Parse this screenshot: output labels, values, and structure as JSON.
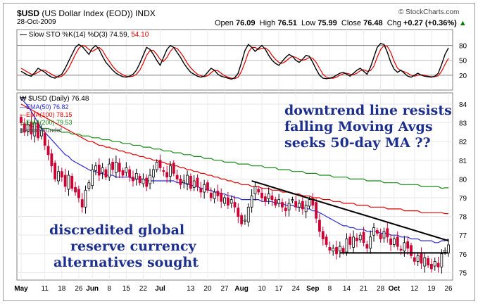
{
  "header": {
    "symbol": "$USD",
    "name": "(US Dollar Index (EOD))",
    "exchange": "INDX",
    "date": "28-Oct-2009",
    "source": "© StockCharts.com",
    "open_label": "Open",
    "open": "76.09",
    "high_label": "High",
    "high": "76.51",
    "low_label": "Low",
    "low": "75.99",
    "close_label": "Close",
    "close": "76.48",
    "chg_label": "Chg",
    "chg": "+0.27 (+0.36%)",
    "chg_arrow": "▲"
  },
  "stoch_panel": {
    "label": "Slow STO %K(14) %D(3)",
    "k_value": "74.59",
    "d_value": "54.10",
    "k_color": "#000000",
    "d_color": "#e00000",
    "ticks": [
      "80",
      "50",
      "20"
    ]
  },
  "price_panel": {
    "label": "$USD (Daily) 76.48",
    "legend": [
      {
        "text": "EMA(50) 76.82",
        "color": "#2b2bd0"
      },
      {
        "text": "EMA(100) 78.15",
        "color": "#e00000"
      },
      {
        "text": "EMA(200) 79.53",
        "color": "#1a8a1a"
      },
      {
        "text": "Volume undef",
        "color": "#555555"
      }
    ]
  },
  "annotations": {
    "top_right": [
      "downtrend line resists",
      "falling Moving Avgs",
      "seeks 50-day MA ??"
    ],
    "bottom_left": [
      "discredited global",
      "reserve currency",
      "alternatives sought"
    ]
  },
  "chart_data": {
    "type": "candlestick",
    "y_ticks": [
      75,
      76,
      77,
      78,
      79,
      80,
      81,
      82,
      83,
      84
    ],
    "ylim": [
      74.6,
      84.6
    ],
    "x_tick_labels": [
      "May",
      "11",
      "18",
      "26",
      "Jun",
      "8",
      "15",
      "22",
      "Jul",
      "13",
      "20",
      "27",
      "Aug",
      "10",
      "17",
      "24",
      "Sep",
      "8",
      "14",
      "21",
      "28",
      "Oct",
      "12",
      "19",
      "26"
    ],
    "x_tick_indices": [
      0,
      7,
      12,
      17,
      21,
      26,
      31,
      36,
      41,
      50,
      55,
      60,
      65,
      71,
      76,
      81,
      86,
      91,
      96,
      101,
      106,
      110,
      116,
      121,
      126
    ],
    "close_series": [
      83.0,
      82.5,
      82.9,
      82.4,
      83.0,
      82.2,
      82.6,
      81.8,
      81.3,
      80.7,
      80.0,
      80.4,
      80.1,
      79.6,
      80.2,
      79.5,
      79.3,
      79.0,
      78.5,
      79.4,
      79.8,
      80.5,
      80.7,
      80.2,
      80.6,
      80.1,
      80.8,
      80.5,
      80.9,
      80.4,
      80.2,
      80.6,
      80.1,
      79.9,
      80.3,
      79.8,
      80.0,
      79.6,
      80.2,
      80.5,
      80.9,
      80.6,
      80.4,
      80.1,
      80.7,
      80.3,
      80.0,
      79.7,
      79.9,
      80.2,
      79.5,
      79.9,
      79.6,
      79.3,
      79.7,
      79.4,
      79.0,
      79.3,
      79.1,
      78.8,
      79.0,
      78.6,
      78.9,
      78.5,
      78.0,
      77.6,
      77.8,
      78.5,
      79.1,
      79.6,
      79.3,
      79.0,
      78.8,
      79.2,
      78.9,
      78.6,
      78.9,
      78.5,
      78.3,
      78.7,
      78.9,
      78.5,
      78.7,
      78.4,
      78.6,
      78.9,
      78.6,
      77.9,
      77.2,
      76.8,
      76.5,
      76.2,
      76.3,
      76.0,
      76.4,
      76.1,
      76.8,
      76.5,
      76.9,
      76.7,
      77.0,
      76.6,
      76.3,
      76.9,
      77.4,
      77.1,
      76.8,
      77.2,
      76.9,
      76.5,
      76.8,
      76.4,
      76.2,
      76.6,
      76.3,
      75.9,
      75.6,
      75.9,
      75.5,
      75.8,
      75.4,
      75.2,
      75.6,
      75.3,
      76.0,
      76.2,
      76.48
    ],
    "ema50": [
      84.3,
      84.1,
      83.9,
      83.6,
      83.3,
      83.0,
      82.7,
      82.5,
      82.3,
      82.1,
      81.9,
      81.7,
      81.5,
      81.3,
      81.2,
      81.0,
      80.9,
      80.8,
      80.7,
      80.6,
      80.5,
      80.4,
      80.4,
      80.3,
      80.3,
      80.2,
      80.2,
      80.2,
      80.1,
      80.1,
      80.1,
      80.1,
      80.1,
      80.0,
      80.0,
      80.0,
      80.0,
      79.9,
      79.9,
      79.9,
      79.9,
      79.9,
      79.9,
      79.9,
      79.9,
      79.9,
      79.8,
      79.8,
      79.8,
      79.7,
      79.7,
      79.6,
      79.6,
      79.5,
      79.5,
      79.4,
      79.4,
      79.3,
      79.3,
      79.2,
      79.2,
      79.1,
      79.1,
      79.0,
      79.0,
      78.9,
      78.9,
      78.9,
      78.9,
      78.9,
      78.9,
      78.8,
      78.8,
      78.8,
      78.8,
      78.7,
      78.7,
      78.7,
      78.6,
      78.6,
      78.6,
      78.5,
      78.5,
      78.5,
      78.4,
      78.4,
      78.3,
      78.3,
      78.2,
      78.1,
      78.0,
      77.9,
      77.8,
      77.7,
      77.6,
      77.5,
      77.5,
      77.4,
      77.4,
      77.3,
      77.3,
      77.3,
      77.2,
      77.2,
      77.2,
      77.2,
      77.1,
      77.1,
      77.1,
      77.0,
      77.0,
      77.0,
      76.9,
      76.9,
      76.9,
      76.8,
      76.8,
      76.8,
      76.7,
      76.7,
      76.7,
      76.7,
      76.6,
      76.6,
      76.7,
      76.7,
      76.8
    ],
    "ema100": [
      84.0,
      83.9,
      83.8,
      83.7,
      83.6,
      83.5,
      83.4,
      83.3,
      83.2,
      83.1,
      83.0,
      82.9,
      82.8,
      82.7,
      82.6,
      82.5,
      82.4,
      82.3,
      82.2,
      82.1,
      82.0,
      82.0,
      81.9,
      81.8,
      81.8,
      81.7,
      81.7,
      81.6,
      81.6,
      81.5,
      81.5,
      81.4,
      81.4,
      81.3,
      81.3,
      81.2,
      81.2,
      81.1,
      81.1,
      81.0,
      81.0,
      80.9,
      80.9,
      80.8,
      80.8,
      80.7,
      80.7,
      80.6,
      80.6,
      80.5,
      80.5,
      80.4,
      80.4,
      80.3,
      80.3,
      80.2,
      80.2,
      80.1,
      80.1,
      80.0,
      80.0,
      79.9,
      79.9,
      79.8,
      79.8,
      79.7,
      79.7,
      79.7,
      79.6,
      79.6,
      79.6,
      79.5,
      79.5,
      79.5,
      79.4,
      79.4,
      79.4,
      79.3,
      79.3,
      79.3,
      79.2,
      79.2,
      79.2,
      79.1,
      79.1,
      79.1,
      79.0,
      79.0,
      79.0,
      78.9,
      78.9,
      78.9,
      78.8,
      78.8,
      78.8,
      78.7,
      78.7,
      78.7,
      78.7,
      78.6,
      78.6,
      78.6,
      78.6,
      78.5,
      78.5,
      78.5,
      78.5,
      78.5,
      78.4,
      78.4,
      78.4,
      78.4,
      78.4,
      78.3,
      78.3,
      78.3,
      78.3,
      78.3,
      78.2,
      78.2,
      78.2,
      78.2,
      78.2,
      78.2,
      78.2,
      78.15,
      78.15
    ],
    "ema200": [
      82.9,
      82.9,
      82.9,
      82.8,
      82.8,
      82.8,
      82.7,
      82.7,
      82.7,
      82.6,
      82.6,
      82.6,
      82.5,
      82.5,
      82.5,
      82.4,
      82.4,
      82.4,
      82.3,
      82.3,
      82.3,
      82.2,
      82.2,
      82.2,
      82.1,
      82.1,
      82.1,
      82.0,
      82.0,
      82.0,
      81.9,
      81.9,
      81.9,
      81.8,
      81.8,
      81.8,
      81.7,
      81.7,
      81.7,
      81.6,
      81.6,
      81.6,
      81.5,
      81.5,
      81.5,
      81.4,
      81.4,
      81.4,
      81.3,
      81.3,
      81.3,
      81.2,
      81.2,
      81.2,
      81.1,
      81.1,
      81.1,
      81.0,
      81.0,
      81.0,
      80.9,
      80.9,
      80.9,
      80.9,
      80.8,
      80.8,
      80.8,
      80.8,
      80.7,
      80.7,
      80.7,
      80.7,
      80.6,
      80.6,
      80.6,
      80.6,
      80.5,
      80.5,
      80.5,
      80.5,
      80.4,
      80.4,
      80.4,
      80.4,
      80.3,
      80.3,
      80.3,
      80.3,
      80.2,
      80.2,
      80.2,
      80.2,
      80.1,
      80.1,
      80.1,
      80.1,
      80.1,
      80.0,
      80.0,
      80.0,
      80.0,
      80.0,
      79.9,
      79.9,
      79.9,
      79.9,
      79.9,
      79.8,
      79.8,
      79.8,
      79.8,
      79.8,
      79.7,
      79.7,
      79.7,
      79.7,
      79.7,
      79.7,
      79.6,
      79.6,
      79.6,
      79.6,
      79.6,
      79.6,
      79.5,
      79.53,
      79.53
    ],
    "stoch_k": [
      28,
      24,
      20,
      18,
      25,
      34,
      30,
      26,
      20,
      16,
      14,
      18,
      22,
      34,
      48,
      62,
      76,
      82,
      78,
      70,
      62,
      74,
      80,
      72,
      58,
      46,
      38,
      30,
      24,
      20,
      17,
      16,
      18,
      22,
      30,
      44,
      60,
      76,
      72,
      62,
      50,
      40,
      56,
      72,
      80,
      76,
      66,
      56,
      44,
      34,
      26,
      22,
      18,
      16,
      18,
      26,
      34,
      30,
      22,
      18,
      16,
      14,
      12,
      15,
      24,
      46,
      70,
      82,
      76,
      68,
      74,
      80,
      72,
      60,
      50,
      44,
      40,
      48,
      56,
      62,
      58,
      50,
      46,
      52,
      60,
      58,
      46,
      32,
      20,
      14,
      13,
      14,
      16,
      20,
      24,
      26,
      22,
      18,
      24,
      30,
      34,
      28,
      22,
      36,
      56,
      76,
      84,
      82,
      66,
      46,
      32,
      26,
      30,
      24,
      18,
      16,
      20,
      24,
      20,
      18,
      17,
      16,
      18,
      24,
      42,
      62,
      75
    ],
    "stoch_d": [
      34,
      30,
      26,
      22,
      22,
      26,
      30,
      30,
      26,
      22,
      18,
      16,
      18,
      24,
      34,
      48,
      62,
      74,
      80,
      78,
      72,
      68,
      72,
      76,
      70,
      58,
      48,
      38,
      30,
      25,
      21,
      18,
      17,
      18,
      22,
      30,
      44,
      60,
      70,
      70,
      62,
      52,
      48,
      56,
      68,
      76,
      74,
      66,
      56,
      44,
      35,
      28,
      22,
      19,
      17,
      19,
      25,
      30,
      29,
      24,
      19,
      16,
      14,
      13,
      16,
      28,
      46,
      66,
      76,
      76,
      72,
      74,
      75,
      70,
      60,
      52,
      46,
      44,
      48,
      54,
      58,
      56,
      52,
      50,
      52,
      56,
      54,
      46,
      34,
      22,
      16,
      14,
      14,
      16,
      20,
      23,
      24,
      22,
      21,
      24,
      29,
      31,
      28,
      29,
      38,
      56,
      72,
      80,
      78,
      66,
      48,
      34,
      29,
      27,
      24,
      20,
      18,
      20,
      21,
      20,
      18,
      17,
      17,
      19,
      28,
      42,
      54
    ],
    "trendline": {
      "start": [
        68,
        79.9
      ],
      "end": [
        126,
        76.7
      ]
    },
    "support_line": {
      "start": [
        94,
        76.05
      ],
      "end": [
        126,
        76.05
      ]
    }
  }
}
